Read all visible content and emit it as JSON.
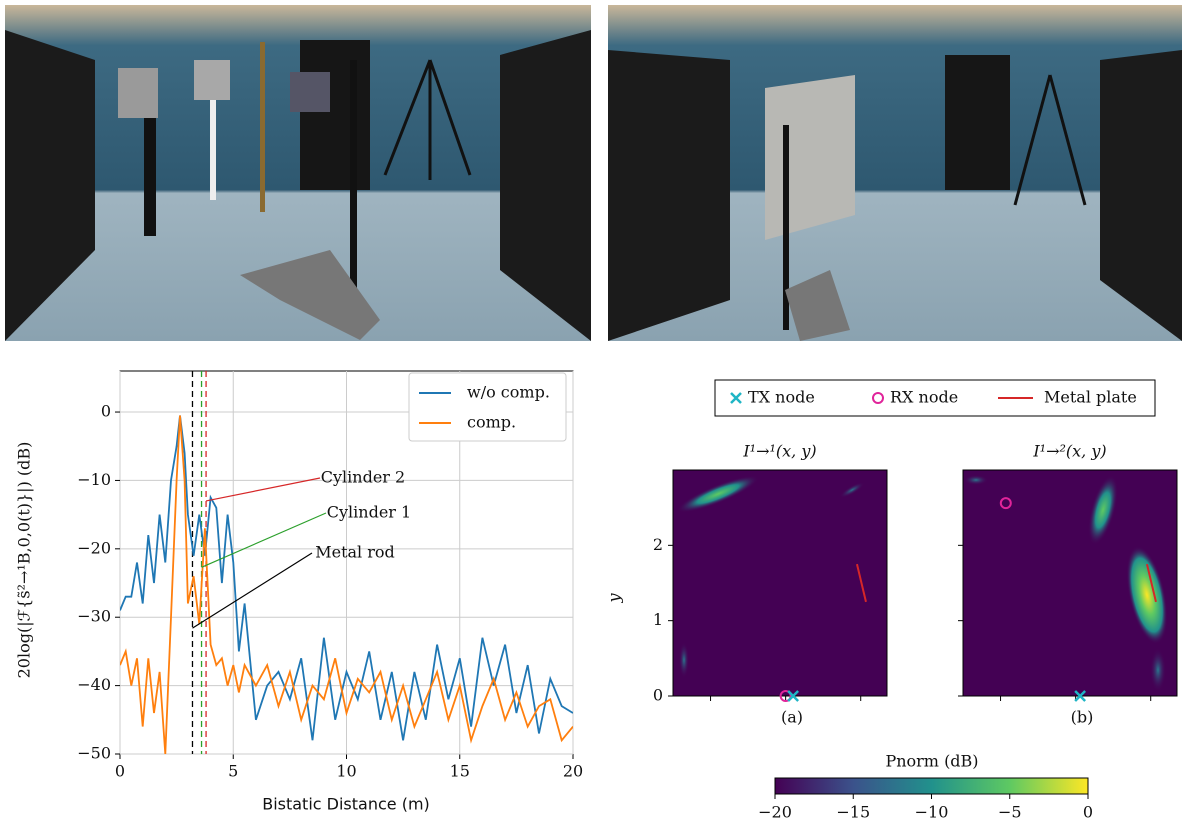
{
  "chart_data": [
    {
      "type": "line",
      "x_label": "Bistatic Distance (m)",
      "y_label": "20log(|ℱ{s̃²→¹B,0,0(t)}|) (dB)",
      "xlim": [
        0,
        20
      ],
      "ylim": [
        -50,
        6
      ],
      "xticks": [
        0,
        5,
        10,
        15,
        20
      ],
      "yticks": [
        {
          "value": -50,
          "label": "−50"
        },
        {
          "value": -40,
          "label": "−40"
        },
        {
          "value": -30,
          "label": "−30"
        },
        {
          "value": -20,
          "label": "−20"
        },
        {
          "value": -10,
          "label": "−10"
        },
        0
      ],
      "grid": true,
      "legend": "upper right",
      "x": [
        0,
        0.25,
        0.5,
        0.75,
        1,
        1.25,
        1.5,
        1.75,
        2,
        2.25,
        2.5,
        2.65,
        2.85,
        3,
        3.25,
        3.5,
        3.75,
        4,
        4.25,
        4.5,
        4.75,
        5,
        5.25,
        5.5,
        6,
        6.5,
        7,
        7.5,
        8,
        8.5,
        9,
        9.5,
        10,
        10.5,
        11,
        11.5,
        12,
        12.5,
        13,
        13.5,
        14,
        14.5,
        15,
        15.5,
        16,
        16.5,
        17,
        17.5,
        18,
        18.5,
        19,
        19.5,
        20
      ],
      "series": [
        {
          "name": "w/o comp.",
          "color": "#1f77b4",
          "values": [
            -29,
            -27,
            -27,
            -22,
            -28,
            -18,
            -25,
            -15,
            -22,
            -10,
            -5,
            -0.5,
            -6,
            -15,
            -21,
            -15,
            -21,
            -12.5,
            -14,
            -25,
            -15,
            -22,
            -35,
            -28,
            -45,
            -40,
            -38,
            -42,
            -36,
            -48,
            -33,
            -45,
            -38,
            -42,
            -35,
            -45,
            -38,
            -48,
            -38,
            -45,
            -34,
            -42,
            -36,
            -46,
            -33,
            -40,
            -34,
            -44,
            -37,
            -47,
            -39,
            -43,
            -44
          ]
        },
        {
          "name": "comp.",
          "color": "#ff7f0e",
          "values": [
            -37,
            -35,
            -40,
            -36,
            -46,
            -36,
            -44,
            -38,
            -50,
            -30,
            -10,
            -0.5,
            -10,
            -28,
            -24,
            -31,
            -17,
            -34,
            -37,
            -36,
            -40,
            -37,
            -41,
            -37,
            -40,
            -37,
            -43,
            -38,
            -45,
            -40,
            -42,
            -36,
            -44,
            -39,
            -41,
            -38,
            -45,
            -40,
            -46,
            -42,
            -38,
            -45,
            -40,
            -48,
            -43,
            -39,
            -45,
            -41,
            -46,
            -43,
            -42,
            -48,
            -46
          ]
        }
      ],
      "annotations": [
        {
          "text": "Cylinder 2",
          "color": "#d62728",
          "x": 3.8,
          "target_y": -13
        },
        {
          "text": "Cylinder 1",
          "color": "#2ca02c",
          "x": 3.6,
          "target_y": -22.7
        },
        {
          "text": "Metal rod",
          "color": "#000000",
          "x": 3.2,
          "target_y": -31.6
        }
      ]
    },
    {
      "type": "heatmap",
      "legend": [
        {
          "name": "TX node",
          "color": "#1fb5c5"
        },
        {
          "name": "RX node",
          "color": "#e0249a"
        },
        {
          "name": "Metal plate",
          "color": "#d62728"
        }
      ],
      "y_label": "y",
      "xlim": [
        -1,
        1.85
      ],
      "ylim": [
        0,
        3
      ],
      "xticks": [
        -0.5,
        0.5,
        1.5
      ],
      "yticks": [
        0,
        1,
        2
      ],
      "panels": [
        {
          "title": "I¹→¹(x, y)",
          "label": "(a)",
          "tx": [
            0.6,
            0
          ],
          "rx": [
            0.5,
            0
          ],
          "plate": [
            [
              1.45,
              1.75
            ],
            [
              1.57,
              1.25
            ]
          ]
        },
        {
          "title": "I¹→²(x, y)",
          "label": "(b)",
          "tx": [
            0.56,
            0
          ],
          "rx": [
            -0.43,
            2.56
          ],
          "plate": [
            [
              1.45,
              1.75
            ],
            [
              1.57,
              1.25
            ]
          ]
        }
      ],
      "colorbar": {
        "label": "Pnorm (dB)",
        "lim": [
          -20,
          0
        ],
        "ticks": [
          {
            "value": -20,
            "label": "−20"
          },
          {
            "value": -15,
            "label": "−15"
          },
          {
            "value": -10,
            "label": "−10"
          },
          {
            "value": -5,
            "label": "−5"
          },
          0
        ]
      }
    }
  ]
}
